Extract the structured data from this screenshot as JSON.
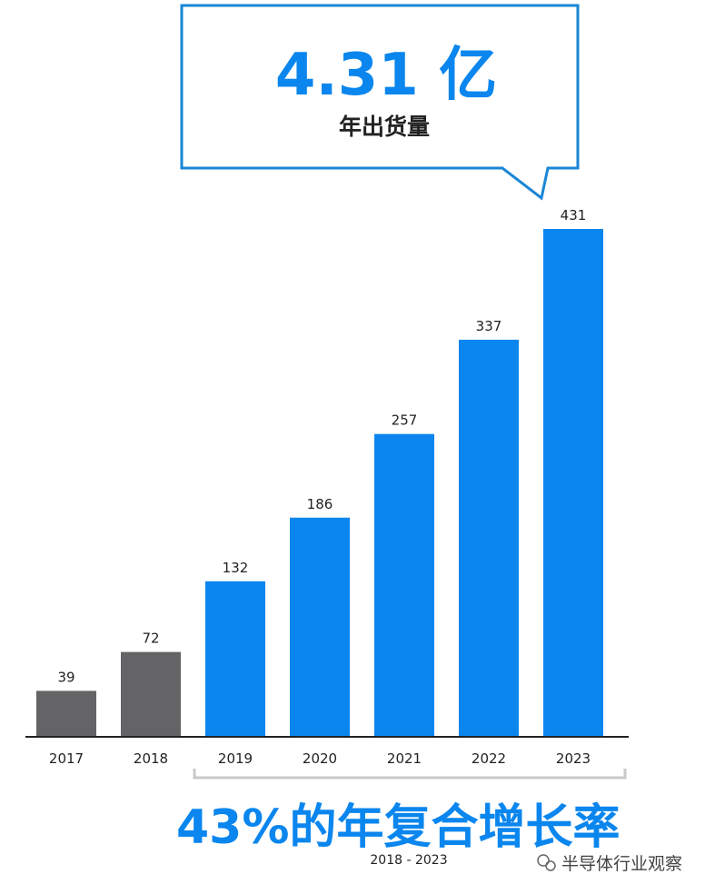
{
  "callout": {
    "value": "4.31 亿",
    "label": "年出货量"
  },
  "footer": {
    "cagr": "43%的年复合增长率",
    "range": "2018 - 2023"
  },
  "watermark": {
    "text": "半导体行业观察"
  },
  "colors": {
    "highlight": "#0a86ee",
    "muted": "#646466",
    "text": "#222222",
    "axis": "#222222",
    "bracket": "#c9c9cc",
    "callout_border": "#1a86d6"
  },
  "chart_data": {
    "type": "bar",
    "title": "",
    "xlabel": "",
    "ylabel": "",
    "categories": [
      "2017",
      "2018",
      "2019",
      "2020",
      "2021",
      "2022",
      "2023"
    ],
    "values": [
      39,
      72,
      132,
      186,
      257,
      337,
      431
    ],
    "data_labels": [
      "39",
      "72",
      "132",
      "186",
      "257",
      "337",
      "431"
    ],
    "bar_colors": [
      "muted",
      "muted",
      "highlight",
      "highlight",
      "highlight",
      "highlight",
      "highlight"
    ],
    "ylim": [
      0,
      431
    ],
    "grid": false,
    "legend": "none"
  }
}
